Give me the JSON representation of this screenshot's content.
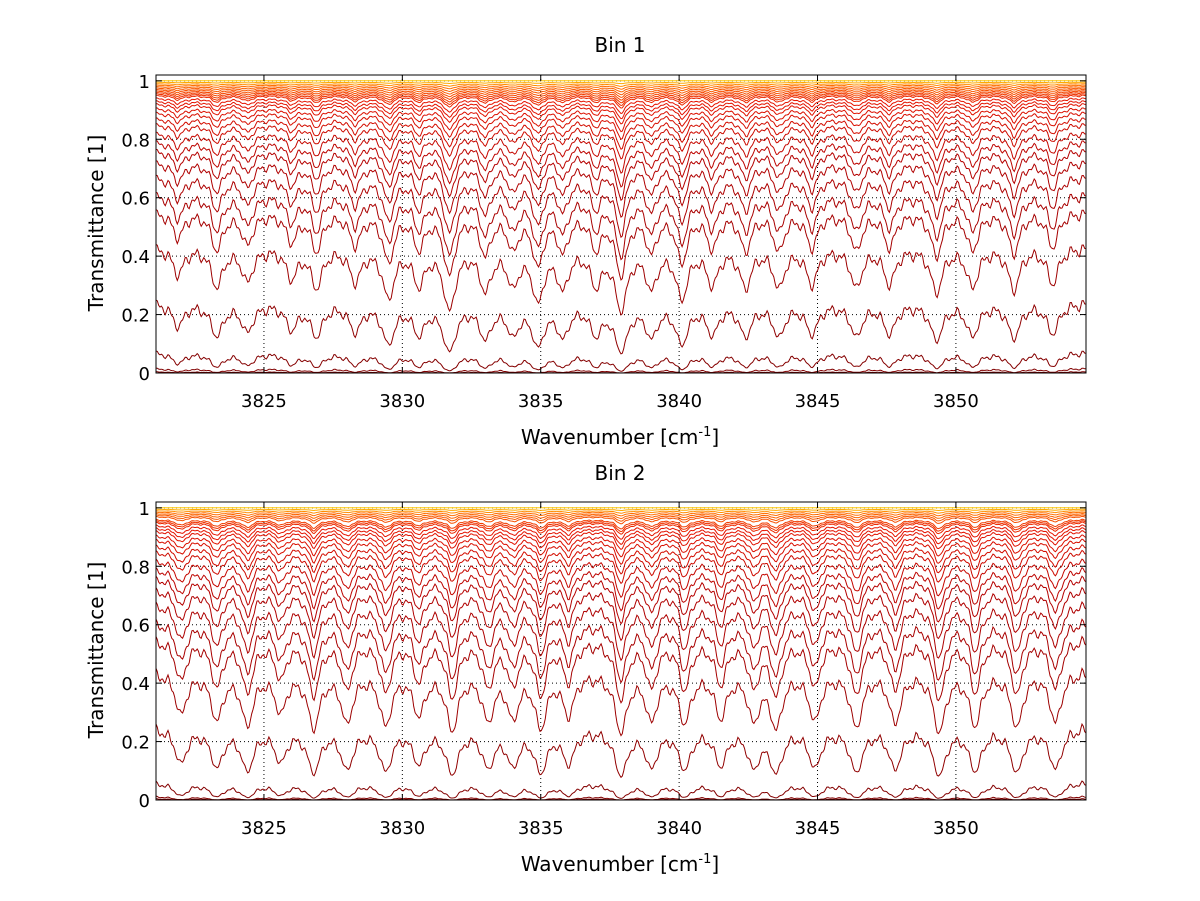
{
  "chart_data": [
    {
      "type": "line",
      "title": "Bin 1",
      "xlabel": "Wavenumber [cm",
      "xlabel_sup": "-1",
      "xlabel_end": "]",
      "ylabel": "Transmittance [1]",
      "xlim": [
        3821.1,
        3854.7
      ],
      "ylim": [
        0,
        1.02
      ],
      "xticks": [
        3825,
        3830,
        3835,
        3840,
        3845,
        3850
      ],
      "yticks": [
        0,
        0.2,
        0.4,
        0.6,
        0.8,
        1
      ],
      "ytick_labels": [
        "0",
        "0.2",
        "0.4",
        "0.6",
        "0.8",
        "1"
      ],
      "grid": "dotted",
      "absorption_lines": [
        {
          "x": 3821.9,
          "d": 0.35
        },
        {
          "x": 3823.3,
          "d": 0.55
        },
        {
          "x": 3824.4,
          "d": 0.45
        },
        {
          "x": 3826.0,
          "d": 0.4
        },
        {
          "x": 3826.9,
          "d": 0.55
        },
        {
          "x": 3828.3,
          "d": 0.45
        },
        {
          "x": 3829.5,
          "d": 0.75
        },
        {
          "x": 3830.6,
          "d": 0.5
        },
        {
          "x": 3831.7,
          "d": 1.0
        },
        {
          "x": 3833.0,
          "d": 0.6
        },
        {
          "x": 3834.0,
          "d": 0.5
        },
        {
          "x": 3834.9,
          "d": 0.8
        },
        {
          "x": 3835.8,
          "d": 0.55
        },
        {
          "x": 3837.0,
          "d": 0.5
        },
        {
          "x": 3837.9,
          "d": 1.0
        },
        {
          "x": 3839.0,
          "d": 0.55
        },
        {
          "x": 3840.1,
          "d": 0.75
        },
        {
          "x": 3841.2,
          "d": 0.5
        },
        {
          "x": 3842.4,
          "d": 0.55
        },
        {
          "x": 3843.6,
          "d": 0.55
        },
        {
          "x": 3844.8,
          "d": 0.5
        },
        {
          "x": 3846.4,
          "d": 0.55
        },
        {
          "x": 3847.6,
          "d": 0.5
        },
        {
          "x": 3849.3,
          "d": 0.65
        },
        {
          "x": 3850.6,
          "d": 0.55
        },
        {
          "x": 3852.1,
          "d": 0.6
        },
        {
          "x": 3853.5,
          "d": 0.5
        }
      ],
      "series_baselines": [
        1.0,
        0.995,
        0.99,
        0.985,
        0.98,
        0.975,
        0.97,
        0.965,
        0.96,
        0.955,
        0.95,
        0.94,
        0.93,
        0.92,
        0.905,
        0.89,
        0.87,
        0.85,
        0.82,
        0.79,
        0.76,
        0.72,
        0.67,
        0.61,
        0.55,
        0.43,
        0.24,
        0.07,
        0.015,
        0.004
      ]
    },
    {
      "type": "line",
      "title": "Bin 2",
      "xlabel": "Wavenumber [cm",
      "xlabel_sup": "-1",
      "xlabel_end": "]",
      "ylabel": "Transmittance [1]",
      "xlim": [
        3821.1,
        3854.7
      ],
      "ylim": [
        0,
        1.02
      ],
      "xticks": [
        3825,
        3830,
        3835,
        3840,
        3845,
        3850
      ],
      "yticks": [
        0,
        0.2,
        0.4,
        0.6,
        0.8,
        1
      ],
      "ytick_labels": [
        "0",
        "0.2",
        "0.4",
        "0.6",
        "0.8",
        "1"
      ],
      "grid": "dotted",
      "absorption_lines": [
        {
          "x": 3822.0,
          "d": 0.6
        },
        {
          "x": 3823.3,
          "d": 0.7
        },
        {
          "x": 3824.4,
          "d": 0.8
        },
        {
          "x": 3825.6,
          "d": 0.55
        },
        {
          "x": 3826.8,
          "d": 0.85
        },
        {
          "x": 3828.0,
          "d": 0.75
        },
        {
          "x": 3829.4,
          "d": 0.8
        },
        {
          "x": 3830.6,
          "d": 0.6
        },
        {
          "x": 3831.8,
          "d": 0.9
        },
        {
          "x": 3833.1,
          "d": 0.7
        },
        {
          "x": 3834.0,
          "d": 0.65
        },
        {
          "x": 3835.0,
          "d": 0.85
        },
        {
          "x": 3836.0,
          "d": 0.6
        },
        {
          "x": 3837.9,
          "d": 0.95
        },
        {
          "x": 3839.0,
          "d": 0.7
        },
        {
          "x": 3840.2,
          "d": 0.75
        },
        {
          "x": 3841.5,
          "d": 0.65
        },
        {
          "x": 3842.7,
          "d": 0.7
        },
        {
          "x": 3843.5,
          "d": 0.85
        },
        {
          "x": 3844.9,
          "d": 0.7
        },
        {
          "x": 3846.4,
          "d": 0.85
        },
        {
          "x": 3847.8,
          "d": 0.75
        },
        {
          "x": 3849.4,
          "d": 0.95
        },
        {
          "x": 3850.7,
          "d": 0.8
        },
        {
          "x": 3852.2,
          "d": 0.85
        },
        {
          "x": 3853.6,
          "d": 0.75
        }
      ],
      "series_baselines": [
        1.0,
        0.995,
        0.99,
        0.985,
        0.98,
        0.975,
        0.97,
        0.96,
        0.955,
        0.95,
        0.94,
        0.93,
        0.92,
        0.905,
        0.89,
        0.87,
        0.85,
        0.82,
        0.79,
        0.76,
        0.72,
        0.67,
        0.61,
        0.55,
        0.44,
        0.25,
        0.06,
        0.012,
        0.004
      ]
    }
  ]
}
